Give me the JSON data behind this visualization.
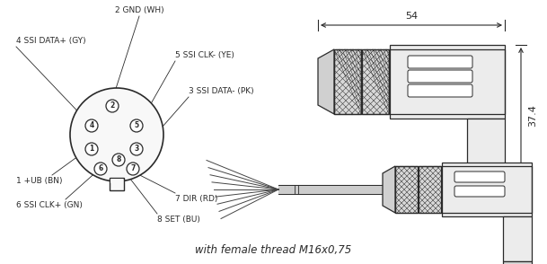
{
  "bg_color": "#ffffff",
  "line_color": "#2a2a2a",
  "bottom_text": "with female thread M16x0,75",
  "dim_54": "54",
  "dim_374": "37.4",
  "figsize": [
    6.09,
    2.94
  ],
  "dpi": 100
}
